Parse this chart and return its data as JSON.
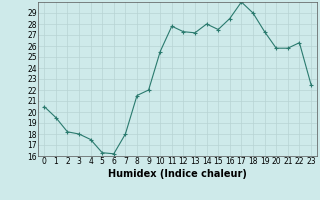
{
  "title": "",
  "xlabel": "Humidex (Indice chaleur)",
  "ylabel": "",
  "x": [
    0,
    1,
    2,
    3,
    4,
    5,
    6,
    7,
    8,
    9,
    10,
    11,
    12,
    13,
    14,
    15,
    16,
    17,
    18,
    19,
    20,
    21,
    22,
    23
  ],
  "y": [
    20.5,
    19.5,
    18.2,
    18.0,
    17.5,
    16.3,
    16.2,
    18.0,
    21.5,
    22.0,
    25.5,
    27.8,
    27.3,
    27.2,
    28.0,
    27.5,
    28.5,
    30.0,
    29.0,
    27.3,
    25.8,
    25.8,
    26.3,
    22.5
  ],
  "line_color": "#2a7a6e",
  "marker": "+",
  "marker_size": 3,
  "bg_color": "#ceeaea",
  "grid_color_major": "#b8d4d4",
  "grid_color_minor": "#b8d4d4",
  "ylim": [
    16,
    30
  ],
  "yticks": [
    16,
    17,
    18,
    19,
    20,
    21,
    22,
    23,
    24,
    25,
    26,
    27,
    28,
    29
  ],
  "xticks": [
    0,
    1,
    2,
    3,
    4,
    5,
    6,
    7,
    8,
    9,
    10,
    11,
    12,
    13,
    14,
    15,
    16,
    17,
    18,
    19,
    20,
    21,
    22,
    23
  ],
  "tick_fontsize": 5.5,
  "xlabel_fontsize": 7,
  "axis_label_color": "#000000"
}
